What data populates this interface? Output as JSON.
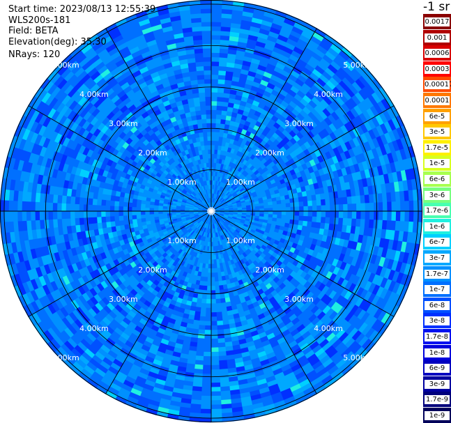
{
  "header": {
    "start_time": "Start time: 2023/08/13 12:55:39",
    "instrument": "WLS200s-181",
    "field": "Field: BETA",
    "elevation": "Elevation(deg): 35.30",
    "nrays": "NRays: 120"
  },
  "unit_label": "-1 sr",
  "chart_data": {
    "type": "heatmap",
    "projection": "polar (PPI)",
    "field": "BETA",
    "elevation_deg": 35.3,
    "nrays": 120,
    "range_ring_labels": [
      "1.00km",
      "2.00km",
      "3.00km",
      "4.00km",
      "5.00km"
    ],
    "range_rings_km": [
      1,
      2,
      3,
      4,
      5
    ],
    "max_range_km": 5.1,
    "spokes": 12,
    "dominant_value_band": [
      "1e-8",
      "1e-7"
    ],
    "colorbar": [
      {
        "label": "0.0017",
        "color": "#8a0000"
      },
      {
        "label": "0.001",
        "color": "#b00000"
      },
      {
        "label": "0.0006",
        "color": "#d80000"
      },
      {
        "label": "0.0003",
        "color": "#ff0000"
      },
      {
        "label": "0.00017",
        "color": "#ff4a00"
      },
      {
        "label": "0.0001",
        "color": "#ff7800"
      },
      {
        "label": "6e-5",
        "color": "#ffa000"
      },
      {
        "label": "3e-5",
        "color": "#ffc800"
      },
      {
        "label": "1.7e-5",
        "color": "#fff000"
      },
      {
        "label": "1e-5",
        "color": "#d8ff20"
      },
      {
        "label": "6e-6",
        "color": "#a8ff50"
      },
      {
        "label": "3e-6",
        "color": "#78ff80"
      },
      {
        "label": "1.7e-6",
        "color": "#48ffb0"
      },
      {
        "label": "1e-6",
        "color": "#20f0e0"
      },
      {
        "label": "6e-7",
        "color": "#00d0ff"
      },
      {
        "label": "3e-7",
        "color": "#00a8ff"
      },
      {
        "label": "1.7e-7",
        "color": "#0090ff"
      },
      {
        "label": "1e-7",
        "color": "#0070ff"
      },
      {
        "label": "6e-8",
        "color": "#0050ff"
      },
      {
        "label": "3e-8",
        "color": "#0030ff"
      },
      {
        "label": "1.7e-8",
        "color": "#0010f0"
      },
      {
        "label": "1e-8",
        "color": "#0000dc"
      },
      {
        "label": "6e-9",
        "color": "#0000c0"
      },
      {
        "label": "3e-9",
        "color": "#0000a0"
      },
      {
        "label": "1.7e-9",
        "color": "#00007c"
      },
      {
        "label": "1e-9",
        "color": "#00005a"
      }
    ]
  }
}
